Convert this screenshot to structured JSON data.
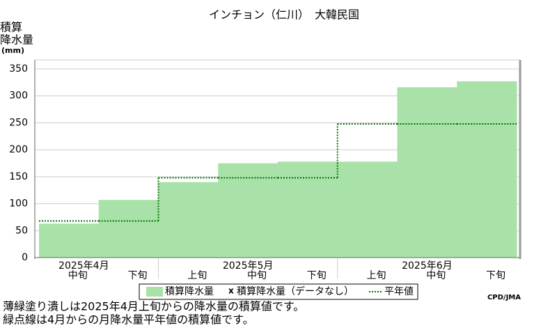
{
  "chart_data": {
    "type": "step-bar",
    "title": "インチョン（仁川）　大韓民国",
    "y_label": [
      "積算",
      "降水量",
      "(mm)"
    ],
    "month_groups": [
      {
        "label": "2025年4月",
        "categories": [
          "中旬",
          "下旬"
        ]
      },
      {
        "label": "2025年5月",
        "categories": [
          "上旬",
          "中旬",
          "下旬"
        ]
      },
      {
        "label": "2025年6月",
        "categories": [
          "上旬",
          "中旬",
          "下旬"
        ]
      }
    ],
    "series": [
      {
        "name": "積算降水量",
        "color": "#a9e2a9",
        "values": [
          63,
          107,
          140,
          175,
          178,
          178,
          316,
          327
        ]
      },
      {
        "name": "平年値",
        "color": "#007000",
        "values": [
          68,
          68,
          148,
          148,
          148,
          248,
          248,
          248
        ]
      }
    ],
    "missing_marker": "x",
    "missing_label": "積算降水量（データなし）",
    "ylim": [
      0,
      350
    ],
    "yticks": [
      0,
      50,
      100,
      150,
      200,
      250,
      300,
      350
    ],
    "grid": true,
    "credit": "CPD/JMA",
    "notes": [
      "薄緑塗り潰しは2025年4月上旬からの降水量の積算値です。",
      "緑点線は4月からの月降水量平年値の積算値です。"
    ]
  }
}
